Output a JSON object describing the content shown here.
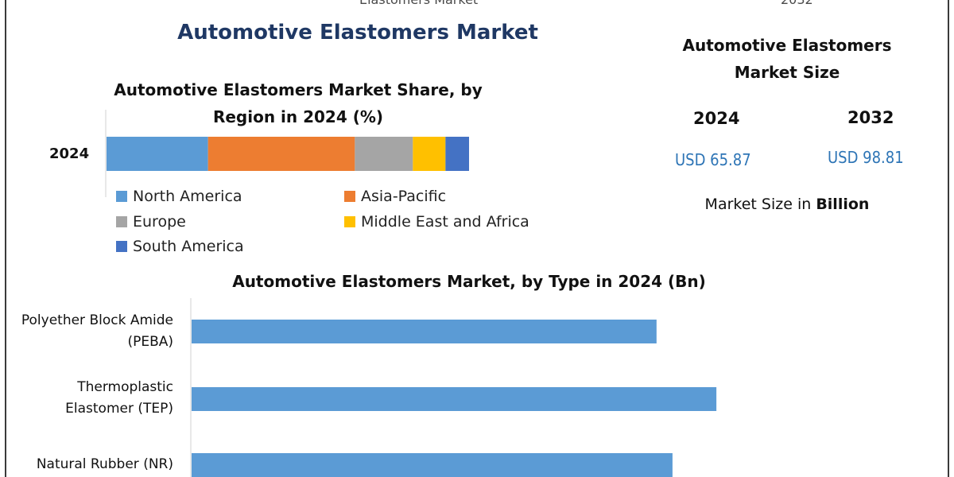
{
  "top_cut_left": "Elastomers Market",
  "top_cut_right": "2032",
  "title": "Automotive Elastomers Market",
  "market_size": {
    "title": "Automotive Elastomers Market Size",
    "year_a": "2024",
    "value_a": "USD 65.87",
    "year_b": "2032",
    "value_b": "USD 98.81",
    "unit_prefix": "Market Size in",
    "unit_bold": "Billion"
  },
  "chart_data": [
    {
      "type": "bar",
      "orientation": "horizontal-stacked",
      "title": "Automotive Elastomers Market Share, by Region in 2024 (%)",
      "categories": [
        "2024"
      ],
      "series": [
        {
          "name": "North America",
          "color": "#5b9bd5",
          "values": [
            28
          ]
        },
        {
          "name": "Asia-Pacific",
          "color": "#ed7d31",
          "values": [
            40.5
          ]
        },
        {
          "name": "Europe",
          "color": "#a5a5a5",
          "values": [
            16
          ]
        },
        {
          "name": "Middle East and Africa",
          "color": "#ffc000",
          "values": [
            9
          ]
        },
        {
          "name": "South America",
          "color": "#4472c4",
          "values": [
            6.5
          ]
        }
      ],
      "xlim": [
        0,
        100
      ],
      "legend": "bottom"
    },
    {
      "type": "bar",
      "orientation": "horizontal",
      "title": "Automotive Elastomers Market, by Type in 2024 (Bn)",
      "categories": [
        "Polyether Block Amide (PEBA)",
        "Thermoplastic Elastomer (TEP)",
        "Natural Rubber (NR)"
      ],
      "values": [
        23.3,
        26.3,
        24.1
      ],
      "xlim": [
        0,
        38
      ],
      "color": "#5b9bd5"
    }
  ]
}
